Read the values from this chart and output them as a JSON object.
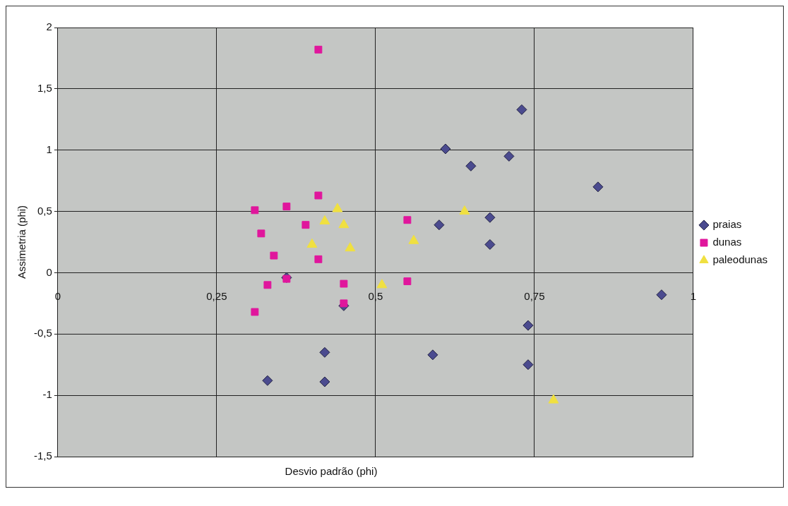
{
  "chart_data": {
    "type": "scatter",
    "xlabel": "Desvio padrão (phi)",
    "ylabel": "Assimetria (phi)",
    "xlim": [
      0,
      1
    ],
    "ylim": [
      -1.5,
      2
    ],
    "xticks": [
      0,
      {
        "value": 0.25,
        "label": "0,25"
      },
      {
        "value": 0.5,
        "label": "0,5"
      },
      {
        "value": 0.75,
        "label": "0,75"
      },
      1
    ],
    "yticks": [
      {
        "value": -1.5,
        "label": "-1,5"
      },
      -1,
      {
        "value": -0.5,
        "label": "-0,5"
      },
      0,
      {
        "value": 0.5,
        "label": "0,5"
      },
      1,
      {
        "value": 1.5,
        "label": "1,5"
      },
      2
    ],
    "grid": true,
    "legend": "right",
    "series": [
      {
        "name": "praias",
        "color": "#4b4b8f",
        "marker": "diamond",
        "x": [
          0.73,
          0.61,
          0.71,
          0.65,
          0.85,
          0.68,
          0.6,
          0.68,
          0.95,
          0.74,
          0.59,
          0.74,
          0.42,
          0.33,
          0.42,
          0.45,
          0.36
        ],
        "values": [
          1.33,
          1.01,
          0.95,
          0.87,
          0.7,
          0.45,
          0.39,
          0.23,
          -0.18,
          -0.43,
          -0.67,
          -0.75,
          -0.65,
          -0.88,
          -0.89,
          -0.27,
          -0.04
        ]
      },
      {
        "name": "dunas",
        "color": "#e0169c",
        "marker": "square",
        "x": [
          0.41,
          0.41,
          0.31,
          0.36,
          0.39,
          0.32,
          0.34,
          0.41,
          0.55,
          0.36,
          0.33,
          0.45,
          0.55,
          0.45,
          0.31
        ],
        "values": [
          1.82,
          0.63,
          0.51,
          0.54,
          0.39,
          0.32,
          0.14,
          0.11,
          0.43,
          -0.05,
          -0.1,
          -0.09,
          -0.07,
          -0.25,
          -0.32
        ]
      },
      {
        "name": "paleodunas",
        "color": "#f0e040",
        "marker": "triangle",
        "x": [
          0.44,
          0.42,
          0.45,
          0.4,
          0.46,
          0.56,
          0.51,
          0.64,
          0.78
        ],
        "values": [
          0.52,
          0.42,
          0.39,
          0.23,
          0.2,
          0.26,
          -0.1,
          0.5,
          -1.04
        ]
      }
    ]
  }
}
